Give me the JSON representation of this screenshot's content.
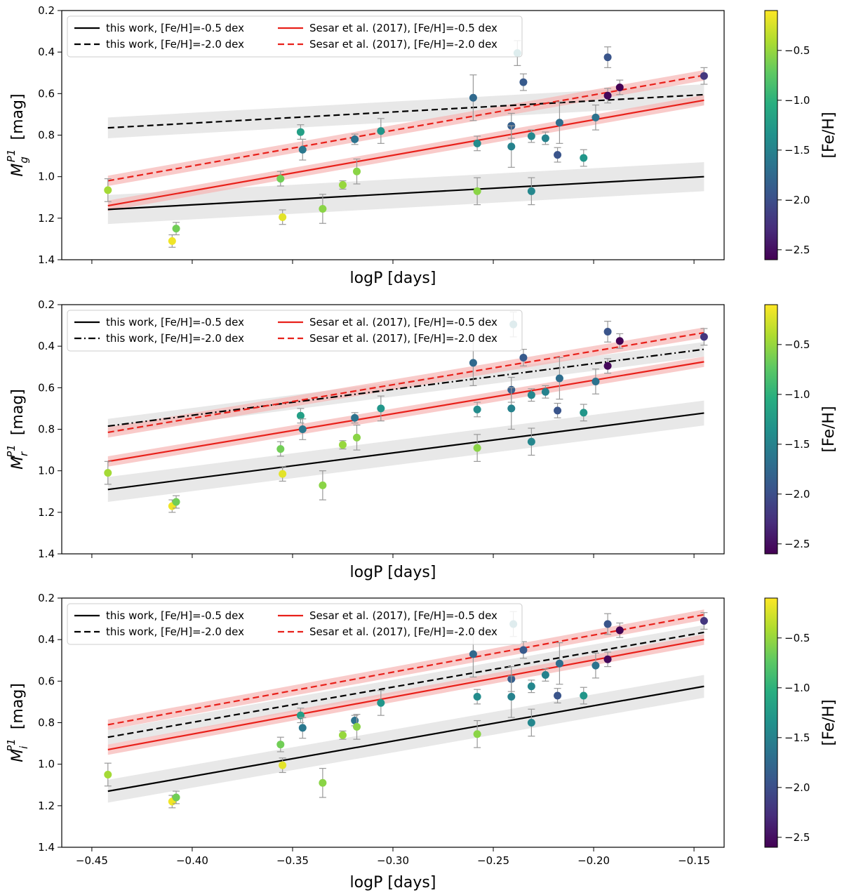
{
  "chart_data": [
    {
      "type": "scatter",
      "panel": "g",
      "xlabel": "logP [days]",
      "ylabel_base": "M",
      "ylabel_sub": "g",
      "ylabel_sup": "P1",
      "ylabel_unit": "[mag]",
      "xlim": [
        -0.465,
        -0.135
      ],
      "ylim": [
        1.4,
        0.2
      ],
      "xticks": [
        -0.45,
        -0.4,
        -0.35,
        -0.3,
        -0.25,
        -0.2,
        -0.15
      ],
      "xtick_labels": [],
      "yticks": [
        0.2,
        0.4,
        0.6,
        0.8,
        1.0,
        1.2,
        1.4
      ],
      "ytick_labels": [
        "0.2",
        "0.4",
        "0.6",
        "0.8",
        "1.0",
        "1.2",
        "1.4"
      ],
      "legend": [
        {
          "label": "this work, [Fe/H]=-0.5 dex",
          "color": "#000000",
          "dash": "solid"
        },
        {
          "label": "this work, [Fe/H]=-2.0 dex",
          "color": "#000000",
          "dash": "dashed"
        },
        {
          "label": "Sesar et al. (2017), [Fe/H]=-0.5 dex",
          "color": "#e8201a",
          "dash": "solid"
        },
        {
          "label": "Sesar et al. (2017), [Fe/H]=-2.0 dex",
          "color": "#e8201a",
          "dash": "dashed"
        }
      ],
      "lines": [
        {
          "name": "this work, [Fe/H]=-0.5 dex",
          "color": "#000000",
          "dash": "solid",
          "x": [
            -0.442,
            -0.145
          ],
          "y": [
            1.158,
            1.0
          ],
          "band": 0.07
        },
        {
          "name": "this work, [Fe/H]=-2.0 dex",
          "color": "#000000",
          "dash": "dashed",
          "x": [
            -0.442,
            -0.145
          ],
          "y": [
            0.765,
            0.605
          ],
          "band": 0.05
        },
        {
          "name": "Sesar et al. (2017), [Fe/H]=-0.5 dex",
          "color": "#e8201a",
          "dash": "solid",
          "x": [
            -0.442,
            -0.145
          ],
          "y": [
            1.14,
            0.632
          ],
          "band": 0.025
        },
        {
          "name": "Sesar et al. (2017), [Fe/H]=-2.0 dex",
          "color": "#e8201a",
          "dash": "dashed",
          "x": [
            -0.442,
            -0.145
          ],
          "y": [
            1.02,
            0.512
          ],
          "band": 0.025
        }
      ],
      "points": [
        {
          "x": -0.442,
          "y": 1.065,
          "err": 0.055,
          "feh": -0.45
        },
        {
          "x": -0.41,
          "y": 1.31,
          "err": 0.03,
          "feh": -0.15
        },
        {
          "x": -0.408,
          "y": 1.25,
          "err": 0.03,
          "feh": -0.65
        },
        {
          "x": -0.356,
          "y": 1.01,
          "err": 0.035,
          "feh": -0.65
        },
        {
          "x": -0.355,
          "y": 1.195,
          "err": 0.035,
          "feh": -0.2
        },
        {
          "x": -0.346,
          "y": 0.785,
          "err": 0.035,
          "feh": -1.2
        },
        {
          "x": -0.345,
          "y": 0.87,
          "err": 0.05,
          "feh": -1.6
        },
        {
          "x": -0.335,
          "y": 1.155,
          "err": 0.07,
          "feh": -0.55
        },
        {
          "x": -0.325,
          "y": 1.04,
          "err": 0.02,
          "feh": -0.5
        },
        {
          "x": -0.319,
          "y": 0.82,
          "err": 0.025,
          "feh": -1.65
        },
        {
          "x": -0.318,
          "y": 0.975,
          "err": 0.06,
          "feh": -0.55
        },
        {
          "x": -0.306,
          "y": 0.78,
          "err": 0.06,
          "feh": -1.3
        },
        {
          "x": -0.26,
          "y": 0.62,
          "err": 0.11,
          "feh": -1.75
        },
        {
          "x": -0.258,
          "y": 0.84,
          "err": 0.035,
          "feh": -1.4
        },
        {
          "x": -0.258,
          "y": 1.07,
          "err": 0.065,
          "feh": -0.55
        },
        {
          "x": -0.241,
          "y": 0.755,
          "err": 0.06,
          "feh": -1.85
        },
        {
          "x": -0.241,
          "y": 0.855,
          "err": 0.1,
          "feh": -1.5
        },
        {
          "x": -0.238,
          "y": 0.405,
          "err": 0.06,
          "feh": -1.45
        },
        {
          "x": -0.235,
          "y": 0.545,
          "err": 0.04,
          "feh": -1.9
        },
        {
          "x": -0.231,
          "y": 0.805,
          "err": 0.03,
          "feh": -1.45
        },
        {
          "x": -0.231,
          "y": 1.07,
          "err": 0.065,
          "feh": -1.45
        },
        {
          "x": -0.224,
          "y": 0.815,
          "err": 0.03,
          "feh": -1.5
        },
        {
          "x": -0.218,
          "y": 0.895,
          "err": 0.035,
          "feh": -1.95
        },
        {
          "x": -0.217,
          "y": 0.74,
          "err": 0.1,
          "feh": -1.7
        },
        {
          "x": -0.205,
          "y": 0.91,
          "err": 0.04,
          "feh": -1.3
        },
        {
          "x": -0.199,
          "y": 0.715,
          "err": 0.06,
          "feh": -1.65
        },
        {
          "x": -0.193,
          "y": 0.425,
          "err": 0.05,
          "feh": -1.95
        },
        {
          "x": -0.193,
          "y": 0.61,
          "err": 0.035,
          "feh": -2.55
        },
        {
          "x": -0.187,
          "y": 0.57,
          "err": 0.035,
          "feh": -2.6
        },
        {
          "x": -0.145,
          "y": 0.515,
          "err": 0.04,
          "feh": -2.2
        }
      ]
    },
    {
      "type": "scatter",
      "panel": "r",
      "xlabel": "logP [days]",
      "ylabel_base": "M",
      "ylabel_sub": "r",
      "ylabel_sup": "P1",
      "ylabel_unit": "[mag]",
      "xlim": [
        -0.465,
        -0.135
      ],
      "ylim": [
        1.4,
        0.2
      ],
      "xticks": [
        -0.45,
        -0.4,
        -0.35,
        -0.3,
        -0.25,
        -0.2,
        -0.15
      ],
      "xtick_labels": [],
      "yticks": [
        0.2,
        0.4,
        0.6,
        0.8,
        1.0,
        1.2,
        1.4
      ],
      "ytick_labels": [
        "0.2",
        "0.4",
        "0.6",
        "0.8",
        "1.0",
        "1.2",
        "1.4"
      ],
      "legend": [
        {
          "label": "this work, [Fe/H]=-0.5 dex",
          "color": "#000000",
          "dash": "solid"
        },
        {
          "label": "this work, [Fe/H]=-2.0 dex",
          "color": "#000000",
          "dash": "dashdot"
        },
        {
          "label": "Sesar et al. (2017), [Fe/H]=-0.5 dex",
          "color": "#e8201a",
          "dash": "solid"
        },
        {
          "label": "Sesar et al. (2017), [Fe/H]=-2.0 dex",
          "color": "#e8201a",
          "dash": "dashed"
        }
      ],
      "lines": [
        {
          "name": "this work, [Fe/H]=-0.5 dex",
          "color": "#000000",
          "dash": "solid",
          "x": [
            -0.442,
            -0.145
          ],
          "y": [
            1.09,
            0.722
          ],
          "band": 0.06
        },
        {
          "name": "this work, [Fe/H]=-2.0 dex",
          "color": "#000000",
          "dash": "dashdot",
          "x": [
            -0.442,
            -0.145
          ],
          "y": [
            0.785,
            0.415
          ],
          "band": 0.035
        },
        {
          "name": "Sesar et al. (2017), [Fe/H]=-0.5 dex",
          "color": "#e8201a",
          "dash": "solid",
          "x": [
            -0.442,
            -0.145
          ],
          "y": [
            0.955,
            0.475
          ],
          "band": 0.025
        },
        {
          "name": "Sesar et al. (2017), [Fe/H]=-2.0 dex",
          "color": "#e8201a",
          "dash": "dashed",
          "x": [
            -0.442,
            -0.145
          ],
          "y": [
            0.815,
            0.335
          ],
          "band": 0.025
        }
      ],
      "points": [
        {
          "x": -0.442,
          "y": 1.01,
          "err": 0.055,
          "feh": -0.45
        },
        {
          "x": -0.41,
          "y": 1.17,
          "err": 0.03,
          "feh": -0.15
        },
        {
          "x": -0.408,
          "y": 1.15,
          "err": 0.03,
          "feh": -0.65
        },
        {
          "x": -0.356,
          "y": 0.895,
          "err": 0.035,
          "feh": -0.65
        },
        {
          "x": -0.355,
          "y": 1.015,
          "err": 0.035,
          "feh": -0.2
        },
        {
          "x": -0.346,
          "y": 0.735,
          "err": 0.035,
          "feh": -1.2
        },
        {
          "x": -0.345,
          "y": 0.8,
          "err": 0.05,
          "feh": -1.6
        },
        {
          "x": -0.335,
          "y": 1.07,
          "err": 0.07,
          "feh": -0.55
        },
        {
          "x": -0.325,
          "y": 0.875,
          "err": 0.02,
          "feh": -0.5
        },
        {
          "x": -0.319,
          "y": 0.745,
          "err": 0.025,
          "feh": -1.65
        },
        {
          "x": -0.318,
          "y": 0.84,
          "err": 0.06,
          "feh": -0.55
        },
        {
          "x": -0.306,
          "y": 0.7,
          "err": 0.06,
          "feh": -1.3
        },
        {
          "x": -0.26,
          "y": 0.48,
          "err": 0.11,
          "feh": -1.75
        },
        {
          "x": -0.258,
          "y": 0.705,
          "err": 0.035,
          "feh": -1.4
        },
        {
          "x": -0.258,
          "y": 0.89,
          "err": 0.065,
          "feh": -0.55
        },
        {
          "x": -0.241,
          "y": 0.61,
          "err": 0.06,
          "feh": -1.85
        },
        {
          "x": -0.241,
          "y": 0.7,
          "err": 0.1,
          "feh": -1.5
        },
        {
          "x": -0.24,
          "y": 0.295,
          "err": 0.06,
          "feh": -1.55
        },
        {
          "x": -0.235,
          "y": 0.455,
          "err": 0.04,
          "feh": -1.9
        },
        {
          "x": -0.231,
          "y": 0.635,
          "err": 0.03,
          "feh": -1.45
        },
        {
          "x": -0.231,
          "y": 0.86,
          "err": 0.065,
          "feh": -1.45
        },
        {
          "x": -0.224,
          "y": 0.62,
          "err": 0.03,
          "feh": -1.5
        },
        {
          "x": -0.218,
          "y": 0.71,
          "err": 0.035,
          "feh": -1.95
        },
        {
          "x": -0.217,
          "y": 0.555,
          "err": 0.1,
          "feh": -1.7
        },
        {
          "x": -0.205,
          "y": 0.72,
          "err": 0.04,
          "feh": -1.3
        },
        {
          "x": -0.199,
          "y": 0.57,
          "err": 0.06,
          "feh": -1.65
        },
        {
          "x": -0.193,
          "y": 0.33,
          "err": 0.05,
          "feh": -1.95
        },
        {
          "x": -0.193,
          "y": 0.495,
          "err": 0.035,
          "feh": -2.55
        },
        {
          "x": -0.187,
          "y": 0.375,
          "err": 0.035,
          "feh": -2.6
        },
        {
          "x": -0.145,
          "y": 0.355,
          "err": 0.04,
          "feh": -2.2
        }
      ]
    },
    {
      "type": "scatter",
      "panel": "i",
      "xlabel": "logP [days]",
      "ylabel_base": "M",
      "ylabel_sub": "i",
      "ylabel_sup": "P1",
      "ylabel_unit": "[mag]",
      "xlim": [
        -0.465,
        -0.135
      ],
      "ylim": [
        1.4,
        0.2
      ],
      "xticks": [
        -0.45,
        -0.4,
        -0.35,
        -0.3,
        -0.25,
        -0.2,
        -0.15
      ],
      "xtick_labels": [
        "−0.45",
        "−0.40",
        "−0.35",
        "−0.30",
        "−0.25",
        "−0.20",
        "−0.15"
      ],
      "yticks": [
        0.2,
        0.4,
        0.6,
        0.8,
        1.0,
        1.2,
        1.4
      ],
      "ytick_labels": [
        "0.2",
        "0.4",
        "0.6",
        "0.8",
        "1.0",
        "1.2",
        "1.4"
      ],
      "legend": [
        {
          "label": "this work, [Fe/H]=-0.5 dex",
          "color": "#000000",
          "dash": "solid"
        },
        {
          "label": "this work, [Fe/H]=-2.0 dex",
          "color": "#000000",
          "dash": "dashed"
        },
        {
          "label": "Sesar et al. (2017), [Fe/H]=-0.5 dex",
          "color": "#e8201a",
          "dash": "solid"
        },
        {
          "label": "Sesar et al. (2017), [Fe/H]=-2.0 dex",
          "color": "#e8201a",
          "dash": "dashed"
        }
      ],
      "lines": [
        {
          "name": "this work, [Fe/H]=-0.5 dex",
          "color": "#000000",
          "dash": "solid",
          "x": [
            -0.442,
            -0.145
          ],
          "y": [
            1.13,
            0.625
          ],
          "band": 0.055
        },
        {
          "name": "this work, [Fe/H]=-2.0 dex",
          "color": "#000000",
          "dash": "dashed",
          "x": [
            -0.442,
            -0.145
          ],
          "y": [
            0.87,
            0.365
          ],
          "band": 0.035
        },
        {
          "name": "Sesar et al. (2017), [Fe/H]=-0.5 dex",
          "color": "#e8201a",
          "dash": "solid",
          "x": [
            -0.442,
            -0.145
          ],
          "y": [
            0.93,
            0.4
          ],
          "band": 0.025
        },
        {
          "name": "Sesar et al. (2017), [Fe/H]=-2.0 dex",
          "color": "#e8201a",
          "dash": "dashed",
          "x": [
            -0.442,
            -0.145
          ],
          "y": [
            0.81,
            0.28
          ],
          "band": 0.025
        }
      ],
      "points": [
        {
          "x": -0.442,
          "y": 1.05,
          "err": 0.055,
          "feh": -0.45
        },
        {
          "x": -0.41,
          "y": 1.18,
          "err": 0.03,
          "feh": -0.15
        },
        {
          "x": -0.408,
          "y": 1.16,
          "err": 0.03,
          "feh": -0.65
        },
        {
          "x": -0.356,
          "y": 0.905,
          "err": 0.035,
          "feh": -0.65
        },
        {
          "x": -0.355,
          "y": 1.005,
          "err": 0.035,
          "feh": -0.2
        },
        {
          "x": -0.346,
          "y": 0.765,
          "err": 0.035,
          "feh": -1.2
        },
        {
          "x": -0.345,
          "y": 0.825,
          "err": 0.05,
          "feh": -1.6
        },
        {
          "x": -0.335,
          "y": 1.09,
          "err": 0.07,
          "feh": -0.55
        },
        {
          "x": -0.325,
          "y": 0.86,
          "err": 0.02,
          "feh": -0.5
        },
        {
          "x": -0.319,
          "y": 0.79,
          "err": 0.025,
          "feh": -1.65
        },
        {
          "x": -0.318,
          "y": 0.82,
          "err": 0.06,
          "feh": -0.55
        },
        {
          "x": -0.306,
          "y": 0.705,
          "err": 0.06,
          "feh": -1.3
        },
        {
          "x": -0.26,
          "y": 0.47,
          "err": 0.11,
          "feh": -1.75
        },
        {
          "x": -0.258,
          "y": 0.675,
          "err": 0.035,
          "feh": -1.4
        },
        {
          "x": -0.258,
          "y": 0.855,
          "err": 0.065,
          "feh": -0.55
        },
        {
          "x": -0.241,
          "y": 0.59,
          "err": 0.06,
          "feh": -1.85
        },
        {
          "x": -0.241,
          "y": 0.675,
          "err": 0.1,
          "feh": -1.5
        },
        {
          "x": -0.24,
          "y": 0.325,
          "err": 0.06,
          "feh": -1.55
        },
        {
          "x": -0.235,
          "y": 0.45,
          "err": 0.04,
          "feh": -1.9
        },
        {
          "x": -0.231,
          "y": 0.625,
          "err": 0.03,
          "feh": -1.45
        },
        {
          "x": -0.231,
          "y": 0.8,
          "err": 0.065,
          "feh": -1.45
        },
        {
          "x": -0.224,
          "y": 0.57,
          "err": 0.03,
          "feh": -1.5
        },
        {
          "x": -0.218,
          "y": 0.67,
          "err": 0.035,
          "feh": -1.95
        },
        {
          "x": -0.217,
          "y": 0.515,
          "err": 0.1,
          "feh": -1.7
        },
        {
          "x": -0.205,
          "y": 0.67,
          "err": 0.04,
          "feh": -1.3
        },
        {
          "x": -0.199,
          "y": 0.525,
          "err": 0.06,
          "feh": -1.65
        },
        {
          "x": -0.193,
          "y": 0.325,
          "err": 0.05,
          "feh": -1.95
        },
        {
          "x": -0.193,
          "y": 0.495,
          "err": 0.035,
          "feh": -2.55
        },
        {
          "x": -0.187,
          "y": 0.355,
          "err": 0.035,
          "feh": -2.6
        },
        {
          "x": -0.145,
          "y": 0.31,
          "err": 0.04,
          "feh": -2.2
        }
      ]
    }
  ],
  "colorbar": {
    "label": "[Fe/H]",
    "range": [
      -2.6,
      -0.1
    ],
    "colormap": "viridis",
    "ticks": [
      -0.5,
      -1.0,
      -1.5,
      -2.0,
      -2.5
    ],
    "tick_labels": [
      "−0.5",
      "−1.0",
      "−1.5",
      "−2.0",
      "−2.5"
    ]
  },
  "colors": {
    "band_gray": "#d9d9d9",
    "band_red": "#f7b5b3",
    "errorbar": "#999999"
  }
}
